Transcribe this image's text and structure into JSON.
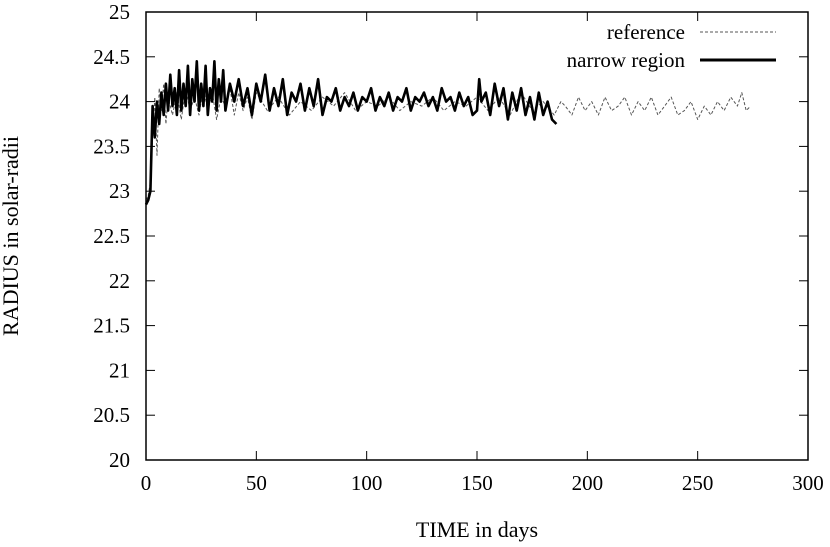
{
  "chart_data": {
    "type": "line",
    "title": "",
    "xlabel": "TIME in days",
    "ylabel": "RADIUS in solar-radii",
    "xlim": [
      0,
      300
    ],
    "ylim": [
      20,
      25
    ],
    "xticks": [
      0,
      50,
      100,
      150,
      200,
      250,
      300
    ],
    "yticks": [
      20,
      20.5,
      21,
      21.5,
      22,
      22.5,
      23,
      23.5,
      24,
      24.5,
      25
    ],
    "xtick_labels": [
      "0",
      "50",
      "100",
      "150",
      "200",
      "250",
      "300"
    ],
    "ytick_labels": [
      "20",
      "20.5",
      "21",
      "21.5",
      "22",
      "22.5",
      "23",
      "23.5",
      "24",
      "24.5",
      "25"
    ],
    "grid": false,
    "legend_position": "top-right",
    "series": [
      {
        "name": "reference",
        "style": "dashed-thin",
        "color": "#555555",
        "x": [
          0,
          1,
          2,
          3,
          4,
          5,
          6,
          7,
          8,
          9,
          10,
          12,
          14,
          16,
          18,
          20,
          22,
          24,
          26,
          28,
          30,
          32,
          34,
          36,
          38,
          40,
          42,
          44,
          46,
          48,
          50,
          55,
          60,
          65,
          70,
          75,
          80,
          85,
          90,
          95,
          100,
          105,
          110,
          115,
          120,
          125,
          130,
          135,
          140,
          145,
          150,
          155,
          160,
          165,
          170,
          175,
          180,
          185,
          188,
          190,
          193,
          196,
          199,
          202,
          205,
          208,
          211,
          214,
          217,
          220,
          223,
          226,
          229,
          232,
          235,
          238,
          241,
          244,
          247,
          250,
          253,
          256,
          259,
          262,
          265,
          268,
          270,
          272,
          274
        ],
        "y": [
          22.9,
          22.95,
          23.1,
          23.6,
          24.05,
          23.4,
          24.15,
          23.9,
          24.2,
          23.75,
          24.05,
          23.85,
          24.1,
          23.8,
          24.15,
          23.9,
          24.05,
          23.85,
          24.15,
          23.9,
          24.1,
          23.8,
          24.05,
          23.95,
          24.15,
          23.85,
          24.1,
          23.9,
          24.05,
          23.8,
          24.1,
          23.9,
          24.05,
          23.85,
          24.0,
          23.9,
          24.05,
          23.95,
          24.1,
          23.9,
          24.0,
          23.95,
          24.05,
          23.9,
          24.0,
          23.95,
          24.05,
          23.9,
          24.0,
          23.95,
          24.05,
          23.9,
          24.05,
          23.85,
          24.1,
          23.9,
          24.0,
          23.85,
          24.0,
          23.95,
          23.85,
          24.05,
          23.9,
          24.0,
          23.85,
          24.05,
          23.9,
          23.95,
          24.05,
          23.85,
          24.0,
          23.9,
          24.05,
          23.85,
          23.95,
          24.05,
          23.85,
          23.9,
          24.0,
          23.8,
          23.95,
          23.85,
          24.0,
          23.9,
          24.05,
          23.95,
          24.1,
          23.9,
          23.95
        ]
      },
      {
        "name": "narrow region",
        "style": "solid-thick",
        "color": "#000000",
        "x": [
          0,
          1,
          2,
          3,
          4,
          5,
          6,
          7,
          8,
          9,
          10,
          11,
          12,
          13,
          14,
          15,
          16,
          17,
          18,
          19,
          20,
          21,
          22,
          23,
          24,
          25,
          26,
          27,
          28,
          29,
          30,
          31,
          32,
          33,
          34,
          35,
          36,
          38,
          40,
          42,
          44,
          46,
          48,
          50,
          52,
          54,
          56,
          58,
          60,
          62,
          64,
          66,
          68,
          70,
          72,
          74,
          76,
          78,
          80,
          82,
          84,
          86,
          88,
          90,
          92,
          94,
          96,
          98,
          100,
          102,
          104,
          106,
          108,
          110,
          112,
          114,
          116,
          118,
          120,
          122,
          124,
          126,
          128,
          130,
          132,
          134,
          136,
          138,
          140,
          142,
          144,
          146,
          148,
          150,
          151,
          152,
          154,
          156,
          158,
          160,
          162,
          164,
          166,
          168,
          170,
          172,
          174,
          176,
          178,
          180,
          182,
          184,
          186
        ],
        "y": [
          22.85,
          22.9,
          23.0,
          23.95,
          23.6,
          24.0,
          23.75,
          24.1,
          23.85,
          24.2,
          23.9,
          24.3,
          23.95,
          24.15,
          23.85,
          24.35,
          23.9,
          24.2,
          23.95,
          24.4,
          23.85,
          24.25,
          24.0,
          24.45,
          23.9,
          24.2,
          23.95,
          24.4,
          23.85,
          24.15,
          24.0,
          24.45,
          23.9,
          24.25,
          24.0,
          24.35,
          23.9,
          24.2,
          24.0,
          24.25,
          23.95,
          24.15,
          23.85,
          24.2,
          24.0,
          24.3,
          23.9,
          24.15,
          23.95,
          24.25,
          23.85,
          24.1,
          24.0,
          24.2,
          23.9,
          24.15,
          23.95,
          24.25,
          23.85,
          24.05,
          24.0,
          24.15,
          23.9,
          24.05,
          23.95,
          24.1,
          23.9,
          24.05,
          24.0,
          24.15,
          23.9,
          24.05,
          23.95,
          24.1,
          23.9,
          24.05,
          24.0,
          24.15,
          23.9,
          24.05,
          24.0,
          24.1,
          23.95,
          24.05,
          23.9,
          24.15,
          24.0,
          24.05,
          23.9,
          24.1,
          23.95,
          24.05,
          23.85,
          23.9,
          24.25,
          24.0,
          24.1,
          23.85,
          24.2,
          23.95,
          24.15,
          23.8,
          24.1,
          23.9,
          24.15,
          23.85,
          24.05,
          23.8,
          24.1,
          23.85,
          24.0,
          23.8,
          23.75
        ]
      }
    ]
  }
}
